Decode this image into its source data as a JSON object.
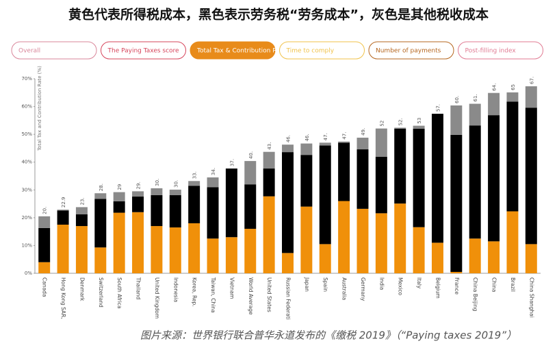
{
  "header": {
    "title": "黄色代表所得税成本，黑色表示劳务税“劳务成本”，灰色是其他税收成本"
  },
  "tabs": [
    {
      "label": "Overall",
      "color": "#d9869a",
      "active": false
    },
    {
      "label": "The Paying Taxes score",
      "color": "#d6445a",
      "active": false
    },
    {
      "label": "Total Tax & Contribution Rate",
      "color": "#e88b1a",
      "active": true
    },
    {
      "label": "Time to comply",
      "color": "#f0c24a",
      "active": false
    },
    {
      "label": "Number of payments",
      "color": "#b5651d",
      "active": false
    },
    {
      "label": "Post-filling index",
      "color": "#e07a92",
      "active": false
    }
  ],
  "chart_data": {
    "type": "stacked_bar",
    "y_label": "Total Tax and Contribution Rate (%)",
    "categories": [
      "Canada",
      "Hong Kong SAR,",
      "Denmark",
      "Switzerland",
      "South Africa",
      "Thailand",
      "United Kingdom",
      "Indonesia",
      "Korea, Rep.",
      "Taiwan, China",
      "Vietnam",
      "World Average",
      "United States",
      "Russian Federati",
      "Japan",
      "Spain",
      "Australia",
      "Germany",
      "India",
      "Mexico",
      "Italy",
      "Belgium",
      "France",
      "China Beijing",
      "China",
      "Brazil",
      "China Shanghai"
    ],
    "series": [
      {
        "color": "#f0900a",
        "values": [
          4,
          17.5,
          17,
          9.3,
          21.8,
          22,
          17,
          16.5,
          18,
          12.5,
          13,
          16,
          27.7,
          7.3,
          24,
          10.5,
          26,
          23.2,
          21.6,
          25.1,
          16.6,
          11,
          0.5,
          12.5,
          11.5,
          22.3,
          10.5
        ]
      },
      {
        "color": "#000000",
        "values": [
          12.3,
          5.1,
          4.2,
          17.5,
          4.1,
          5.6,
          11.1,
          11.6,
          13.5,
          18.5,
          24.7,
          16,
          10,
          36.3,
          18.6,
          35.5,
          21,
          21.4,
          20.3,
          26.9,
          35.4,
          46.4,
          49.3,
          40.7,
          45.4,
          39.5,
          49.1
        ]
      },
      {
        "color": "#8a8a8a",
        "values": [
          4.2,
          0.3,
          2.6,
          2,
          3.3,
          1.9,
          2.5,
          2,
          1.7,
          3.5,
          0,
          8.4,
          6,
          2.7,
          4.1,
          1,
          0.4,
          4.2,
          10.2,
          0.4,
          1.1,
          0,
          10.6,
          7.8,
          8,
          3.3,
          7.7
        ]
      }
    ],
    "total_labels": [
      "20.",
      "22.9",
      "23.",
      "28.",
      "29",
      "29.",
      "30.",
      "30.",
      "33.",
      "34.",
      "37.",
      "40.",
      "43.",
      "46.",
      "46.",
      "47.",
      "47.",
      "49.",
      "52",
      "52.",
      "53",
      "57.",
      "60.",
      "61.",
      "64.",
      "65",
      "67."
    ],
    "ylim": [
      0,
      70
    ],
    "yticks": [
      {
        "value": 0,
        "label": "0%"
      },
      {
        "value": 10,
        "label": "10%"
      },
      {
        "value": 20,
        "label": "20%"
      },
      {
        "value": 30,
        "label": "30%"
      },
      {
        "value": 40,
        "label": "40%"
      },
      {
        "value": 50,
        "label": "50%"
      },
      {
        "value": 60,
        "label": "60%"
      },
      {
        "value": 70,
        "label": "70%"
      }
    ],
    "grid": false
  },
  "footer": {
    "caption": "图片来源：世界银行联合普华永道发布的《缴税 2019》（“Paying taxes 2019”）"
  }
}
